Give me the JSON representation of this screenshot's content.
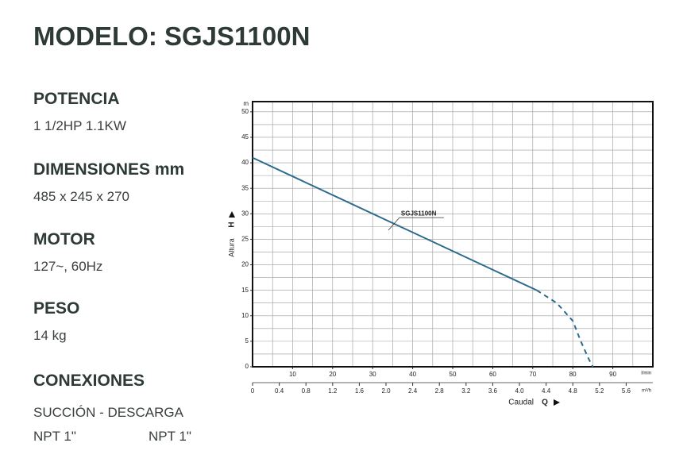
{
  "title": "MODELO: SGJS1100N",
  "specs": [
    {
      "label": "POTENCIA",
      "lines": [
        "1 1/2HP  1.1KW"
      ]
    },
    {
      "label": "DIMENSIONES mm",
      "lines": [
        "485 x 245 x 270"
      ]
    },
    {
      "label": "MOTOR",
      "lines": [
        "127~, 60Hz"
      ]
    },
    {
      "label": "PESO",
      "lines": [
        "14 kg"
      ]
    },
    {
      "label": "CONEXIONES",
      "lines": [
        "SUCCIÓN - DESCARGA",
        "NPT 1\"",
        "NPT 1\""
      ]
    }
  ],
  "chart_data": {
    "type": "line",
    "y_label": "Altura",
    "y_symbol": "H",
    "y_unit": "m",
    "x_label": "Caudal",
    "x_symbol": "Q",
    "x_unit": "l/min",
    "x2_unit": "m³/h",
    "xlim": [
      0,
      100
    ],
    "xticks": [
      10,
      20,
      30,
      40,
      50,
      60,
      70,
      80,
      90
    ],
    "x2lim": [
      0,
      6
    ],
    "x2ticks": [
      0,
      0.4,
      0.8,
      1.2,
      1.6,
      {
        "value": 2,
        "label": "2.0"
      },
      2.4,
      2.8,
      3.2,
      3.6,
      {
        "value": 4,
        "label": "4.0"
      },
      4.4,
      4.8,
      5.2,
      5.6
    ],
    "ylim": [
      0,
      52
    ],
    "yticks": [
      0,
      5,
      10,
      15,
      20,
      25,
      30,
      35,
      40,
      45,
      50
    ],
    "grid": true,
    "xgrid_step": 5,
    "ygrid_step": 2.5,
    "series": [
      {
        "name": "SGJS1100N",
        "color": "#2b6b8e",
        "x": [
          0,
          71
        ],
        "values": [
          41,
          15
        ]
      },
      {
        "color": "#2b6b8e",
        "style": "dashed",
        "x": [
          71,
          76,
          80,
          82,
          84,
          85
        ],
        "values": [
          15,
          12.5,
          9,
          5,
          1.5,
          0
        ]
      }
    ]
  }
}
